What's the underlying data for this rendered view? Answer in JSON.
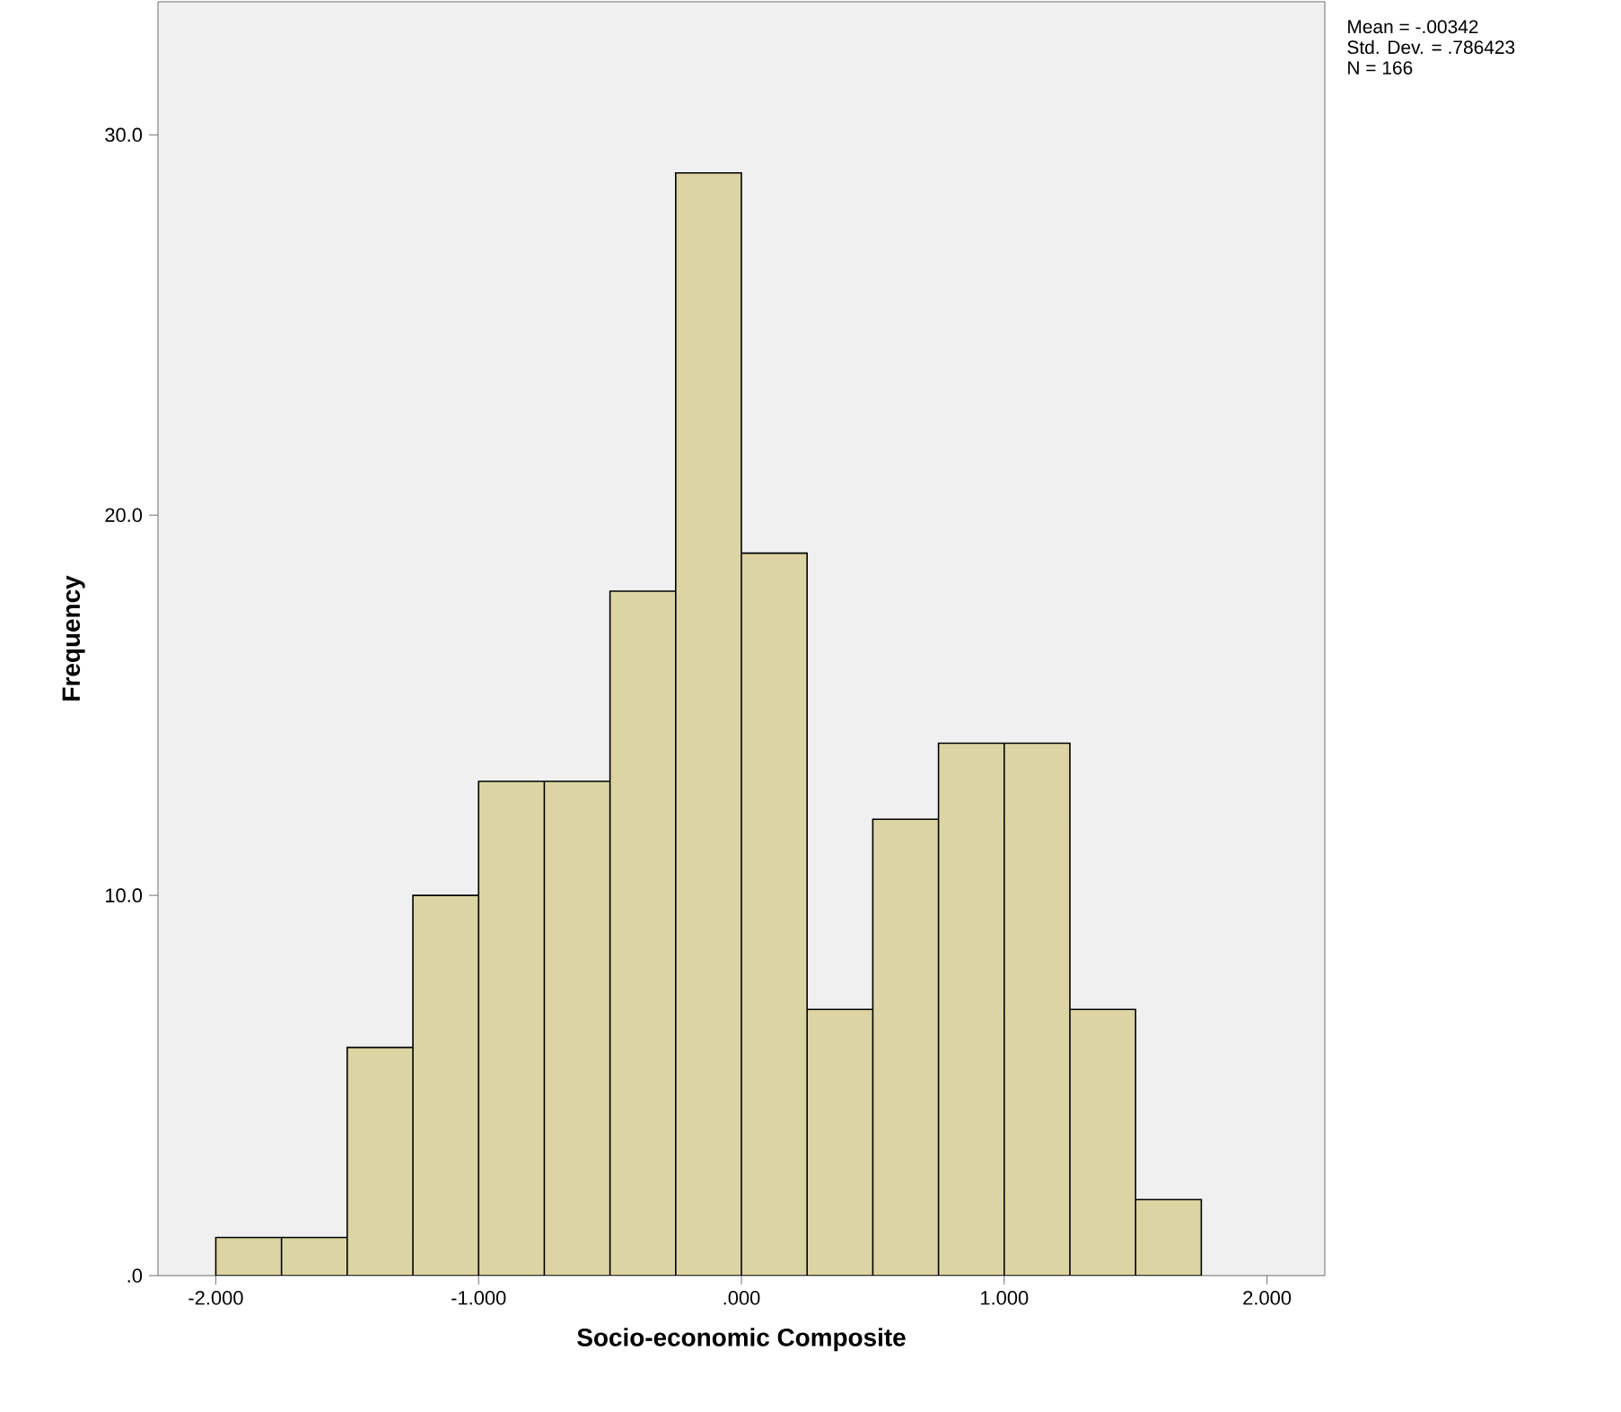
{
  "chart_data": {
    "type": "histogram",
    "xlabel": "Socio-economic Composite",
    "ylabel": "Frequency",
    "annotations": [
      "Mean = -.00342",
      "Std. Dev. = .786423",
      "N = 166"
    ],
    "bins": [
      -2.0,
      -1.75,
      -1.5,
      -1.25,
      -1.0,
      -0.75,
      -0.5,
      -0.25,
      0.0,
      0.25,
      0.5,
      0.75,
      1.0,
      1.25,
      1.5,
      1.75
    ],
    "values": [
      1,
      1,
      6,
      10,
      13,
      13,
      18,
      29,
      19,
      7,
      12,
      14,
      14,
      7,
      2
    ],
    "color": "#dcd5a3",
    "xlim": [
      -2.22,
      2.22
    ],
    "ylim": [
      0,
      33.5
    ],
    "xticks": [
      {
        "value": -2,
        "label": "-2.000"
      },
      {
        "value": -1,
        "label": "-1.000"
      },
      {
        "value": 0,
        "label": ".000"
      },
      {
        "value": 1,
        "label": "1.000"
      },
      {
        "value": 2,
        "label": "2.000"
      }
    ],
    "yticks": [
      {
        "value": 0,
        "label": ".0"
      },
      {
        "value": 10,
        "label": "10.0"
      },
      {
        "value": 20,
        "label": "20.0"
      },
      {
        "value": 30,
        "label": "30.0"
      }
    ],
    "grid": false
  }
}
